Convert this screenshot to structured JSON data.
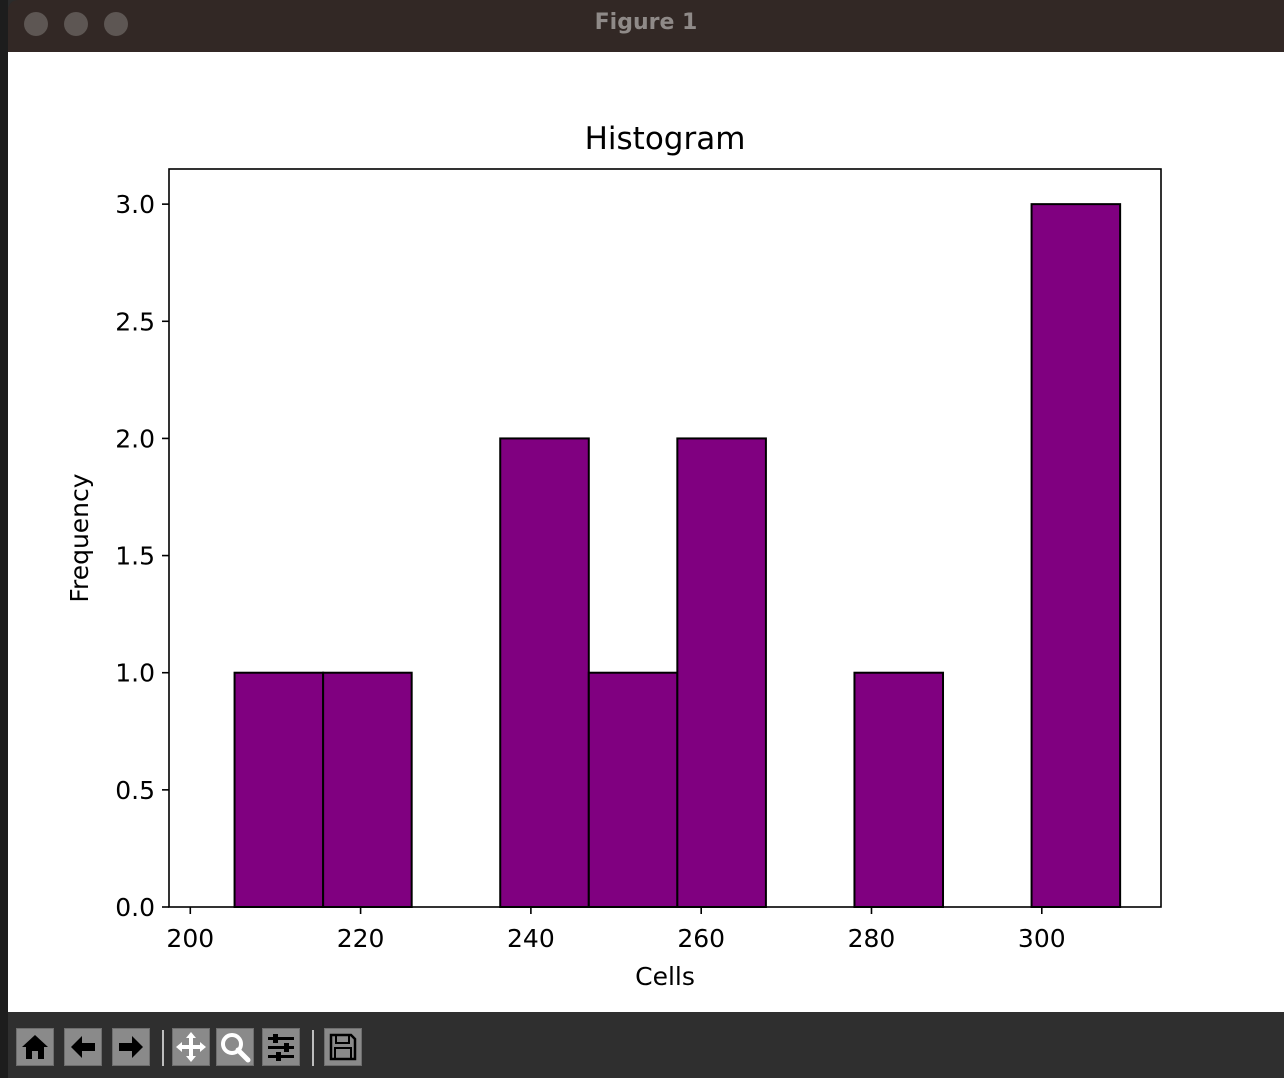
{
  "window": {
    "title": "Figure 1"
  },
  "toolbar": {
    "buttons": [
      {
        "icon": "home-icon",
        "name": "home-button"
      },
      {
        "icon": "arrow-left-icon",
        "name": "back-button"
      },
      {
        "icon": "arrow-right-icon",
        "name": "forward-button"
      },
      {
        "icon": "pan-icon",
        "name": "pan-button"
      },
      {
        "icon": "zoom-icon",
        "name": "zoom-button"
      },
      {
        "icon": "sliders-icon",
        "name": "configure-subplots-button"
      },
      {
        "icon": "save-icon",
        "name": "save-button"
      }
    ]
  },
  "colors": {
    "bar_fill": "#800080",
    "bar_edge": "#000000"
  },
  "chart_data": {
    "type": "bar",
    "title": "Histogram",
    "xlabel": "Cells",
    "ylabel": "Frequency",
    "xlim": [
      197.5,
      314.0
    ],
    "ylim": [
      0,
      3.15
    ],
    "xticks": [
      200,
      220,
      240,
      260,
      280,
      300
    ],
    "yticks": [
      0.0,
      0.5,
      1.0,
      1.5,
      2.0,
      2.5,
      3.0
    ],
    "xtick_labels": [
      "200",
      "220",
      "240",
      "260",
      "280",
      "300"
    ],
    "ytick_labels": [
      "0.0",
      "0.5",
      "1.0",
      "1.5",
      "2.0",
      "2.5",
      "3.0"
    ],
    "bin_edges": [
      205.2,
      215.6,
      226.0,
      236.4,
      246.8,
      257.2,
      267.6,
      278.0,
      288.4,
      298.8,
      309.2
    ],
    "values": [
      1,
      1,
      0,
      2,
      1,
      2,
      0,
      1,
      0,
      3
    ],
    "grid": false,
    "legend": "none"
  }
}
